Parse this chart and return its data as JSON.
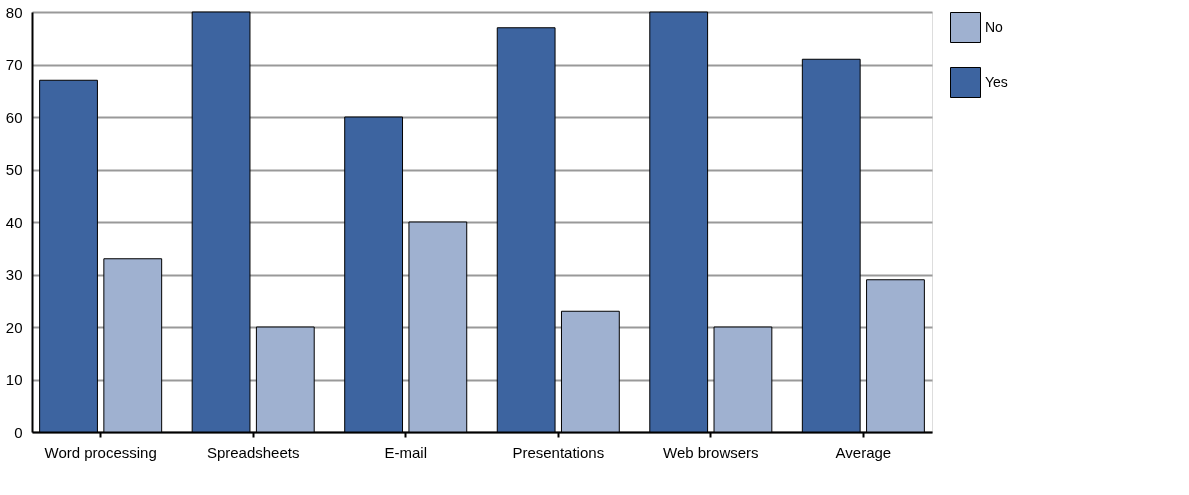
{
  "chart_data": {
    "type": "bar",
    "categories": [
      "Word processing",
      "Spreadsheets",
      "E-mail",
      "Presentations",
      "Web browsers",
      "Average"
    ],
    "series": [
      {
        "name": "Yes",
        "color": "#3d64a0",
        "values": [
          67,
          80,
          60,
          77,
          80,
          71
        ]
      },
      {
        "name": "No",
        "color": "#9fb1d0",
        "values": [
          33,
          20,
          40,
          23,
          20,
          29
        ]
      }
    ],
    "ylim": [
      0,
      80
    ],
    "yticks": [
      0,
      10,
      20,
      30,
      40,
      50,
      60,
      70,
      80
    ],
    "grid": "y",
    "legend": "top right"
  }
}
